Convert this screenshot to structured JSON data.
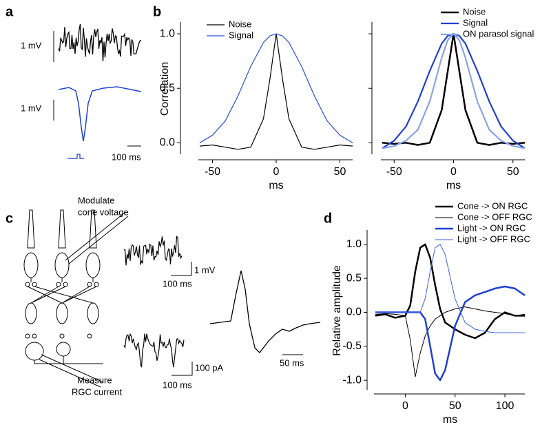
{
  "panel_labels": [
    "a",
    "b",
    "c",
    "d"
  ],
  "panel_a": {
    "scale_labels": [
      "1 mV",
      "1 mV",
      "100 ms"
    ]
  },
  "panel_c": {
    "annotations": [
      [
        "Modulate",
        "cone voltage"
      ],
      [
        "Measure",
        "RGC current"
      ]
    ],
    "scale_labels": [
      "1 mV",
      "100 ms",
      "100 pA",
      "100 ms",
      "50 ms"
    ]
  },
  "chart_data": [
    {
      "type": "line",
      "ylabel": "Correlation",
      "xlabel": "ms",
      "legend": "upper left",
      "xlim": [
        -60,
        60
      ],
      "ylim": [
        -0.08,
        1.07
      ],
      "xticks": [
        -50,
        0,
        50
      ],
      "yticks": [
        {
          "value": 0,
          "label": "0.0"
        },
        {
          "value": 0.5,
          "label": "0.5"
        },
        {
          "value": 1,
          "label": "1.0"
        }
      ],
      "x": [
        -60,
        -50,
        -40,
        -30,
        -20,
        -10,
        -5,
        0,
        5,
        10,
        20,
        30,
        40,
        50,
        60
      ],
      "series": [
        {
          "name": "Noise",
          "color": "#000000",
          "width": 1.2,
          "values": [
            -0.03,
            -0.02,
            -0.04,
            -0.06,
            -0.04,
            0.22,
            0.58,
            1.0,
            0.58,
            0.22,
            -0.04,
            -0.06,
            -0.04,
            -0.02,
            -0.03
          ]
        },
        {
          "name": "Signal",
          "color": "#2b4fd6",
          "width": 1.2,
          "values": [
            0.0,
            0.07,
            0.2,
            0.43,
            0.7,
            0.92,
            0.98,
            1.0,
            0.98,
            0.92,
            0.7,
            0.43,
            0.2,
            0.07,
            0.0
          ]
        }
      ]
    },
    {
      "type": "line",
      "xlabel": "ms",
      "legend": "upper right",
      "ytick_labels": false,
      "xlim": [
        -60,
        60
      ],
      "ylim": [
        -0.08,
        1.07
      ],
      "xticks": [
        -50,
        0,
        50
      ],
      "yticks": [
        0,
        0.5,
        1
      ],
      "x": [
        -60,
        -50,
        -40,
        -30,
        -20,
        -10,
        -5,
        0,
        5,
        10,
        20,
        30,
        40,
        50,
        60
      ],
      "series": [
        {
          "name": "Noise",
          "color": "#000000",
          "width": 2.5,
          "values": [
            0.0,
            -0.01,
            0.0,
            -0.02,
            0.0,
            0.3,
            0.65,
            1.0,
            0.65,
            0.3,
            0.0,
            -0.02,
            0.0,
            -0.01,
            0.0
          ]
        },
        {
          "name": "Signal",
          "color": "#1f3fd0",
          "width": 2.2,
          "values": [
            -0.05,
            0.02,
            0.15,
            0.38,
            0.66,
            0.91,
            0.98,
            1.0,
            0.98,
            0.91,
            0.66,
            0.38,
            0.15,
            0.02,
            -0.05
          ]
        },
        {
          "name": "ON parasol signal",
          "color": "#8aa2ea",
          "width": 2.2,
          "values": [
            -0.05,
            -0.03,
            0.02,
            0.12,
            0.38,
            0.78,
            0.94,
            1.0,
            0.94,
            0.78,
            0.38,
            0.12,
            0.02,
            -0.03,
            -0.05
          ]
        }
      ]
    },
    {
      "type": "line",
      "ylabel": "Relative amplitude",
      "xlabel": "ms",
      "legend": "above",
      "xlim": [
        -30,
        120
      ],
      "ylim": [
        -1.1,
        1.15
      ],
      "xticks": [
        0,
        50,
        100
      ],
      "yticks": [
        {
          "value": -1,
          "label": "-1.0"
        },
        {
          "value": -0.5,
          "label": "-0.5"
        },
        {
          "value": 0,
          "label": "0.0"
        },
        {
          "value": 0.5,
          "label": "0.5"
        },
        {
          "value": 1,
          "label": "1.0"
        }
      ],
      "x": [
        -30,
        -20,
        -10,
        0,
        5,
        10,
        15,
        20,
        25,
        30,
        35,
        40,
        50,
        60,
        70,
        80,
        90,
        100,
        110,
        120
      ],
      "series": [
        {
          "name": "Cone -> ON RGC",
          "color": "#000000",
          "width": 2.5,
          "values": [
            -0.05,
            -0.03,
            -0.08,
            -0.05,
            0.1,
            0.6,
            0.95,
            1.0,
            0.8,
            0.4,
            0.05,
            -0.15,
            -0.25,
            -0.33,
            -0.38,
            -0.3,
            -0.1,
            0.0,
            -0.05,
            -0.05
          ]
        },
        {
          "name": "Cone -> OFF RGC",
          "color": "#000000",
          "width": 1,
          "values": [
            -0.03,
            -0.02,
            -0.03,
            -0.05,
            -0.4,
            -0.95,
            -0.6,
            -0.35,
            -0.2,
            -0.1,
            -0.05,
            0.0,
            0.05,
            0.08,
            0.05,
            0.02,
            0.0,
            -0.02,
            -0.05,
            -0.03
          ]
        },
        {
          "name": "Light -> ON RGC",
          "color": "#1f3fd0",
          "width": 2.5,
          "values": [
            0.0,
            0.0,
            0.0,
            0.0,
            0.0,
            0.0,
            0.0,
            -0.1,
            -0.5,
            -0.9,
            -1.0,
            -0.85,
            -0.2,
            0.15,
            0.25,
            0.3,
            0.35,
            0.38,
            0.35,
            0.25
          ]
        },
        {
          "name": "Light -> OFF RGC",
          "color": "#3d5fe0",
          "width": 1,
          "values": [
            0.0,
            0.0,
            0.0,
            0.0,
            0.0,
            0.0,
            0.0,
            0.2,
            0.6,
            0.95,
            1.0,
            0.85,
            0.2,
            -0.15,
            -0.25,
            -0.28,
            -0.3,
            -0.3,
            -0.3,
            -0.3
          ]
        }
      ]
    }
  ]
}
